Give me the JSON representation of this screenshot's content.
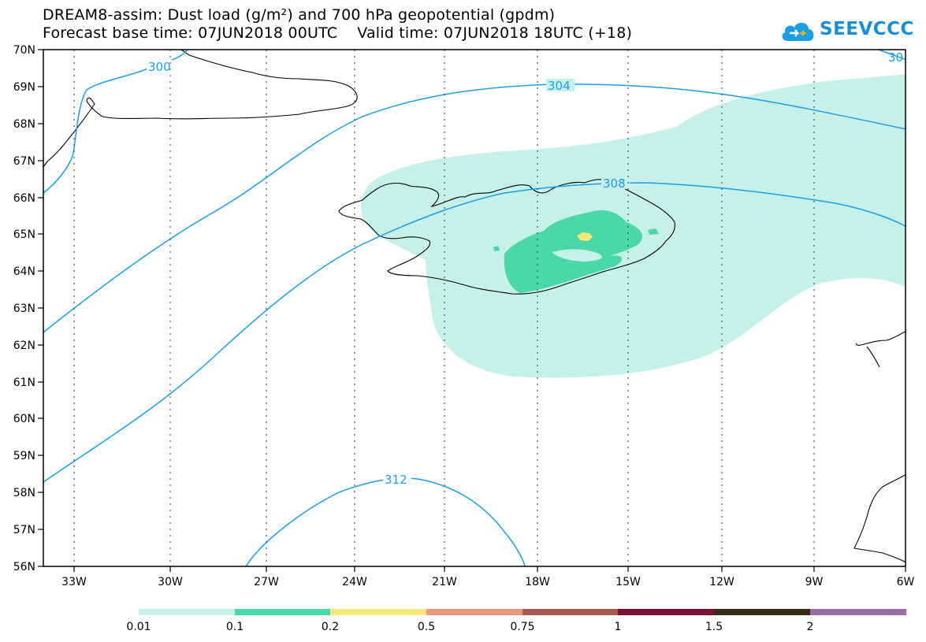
{
  "title_line1": "DREAM8-assim: Dust load (g/m²) and 700 hPa geopotential (gpdm)",
  "title_line2": "Forecast base time: 07JUN2018 00UTC    Valid time: 07JUN2018 18UTC (+18)",
  "logo_text": "SEEVCCC",
  "lat_labels": [
    "70N",
    "69N",
    "68N",
    "67N",
    "66N",
    "65N",
    "64N",
    "63N",
    "62N",
    "61N",
    "60N",
    "59N",
    "58N",
    "57N",
    "56N"
  ],
  "lon_labels": [
    "33W",
    "30W",
    "27W",
    "24W",
    "21W",
    "18W",
    "15W",
    "12W",
    "9W",
    "6W"
  ],
  "contour_labels": [
    "300",
    "304",
    "308",
    "312",
    "30"
  ],
  "colorbar": {
    "labels": [
      "0.01",
      "0.1",
      "0.2",
      "0.5",
      "0.75",
      "1",
      "1.5",
      "2"
    ],
    "colors": [
      "#c6f0ea",
      "#4ad8a8",
      "#f4e87a",
      "#e69a7e",
      "#a85a52",
      "#7a1432",
      "#3a2a1a",
      "#9a6ea6"
    ]
  },
  "colors": {
    "contour": "#1a9ee6",
    "dust_low": "#c6f0ea",
    "dust_mid": "#4ad8a8",
    "dust_high": "#f4e87a",
    "grid": "#333333"
  }
}
